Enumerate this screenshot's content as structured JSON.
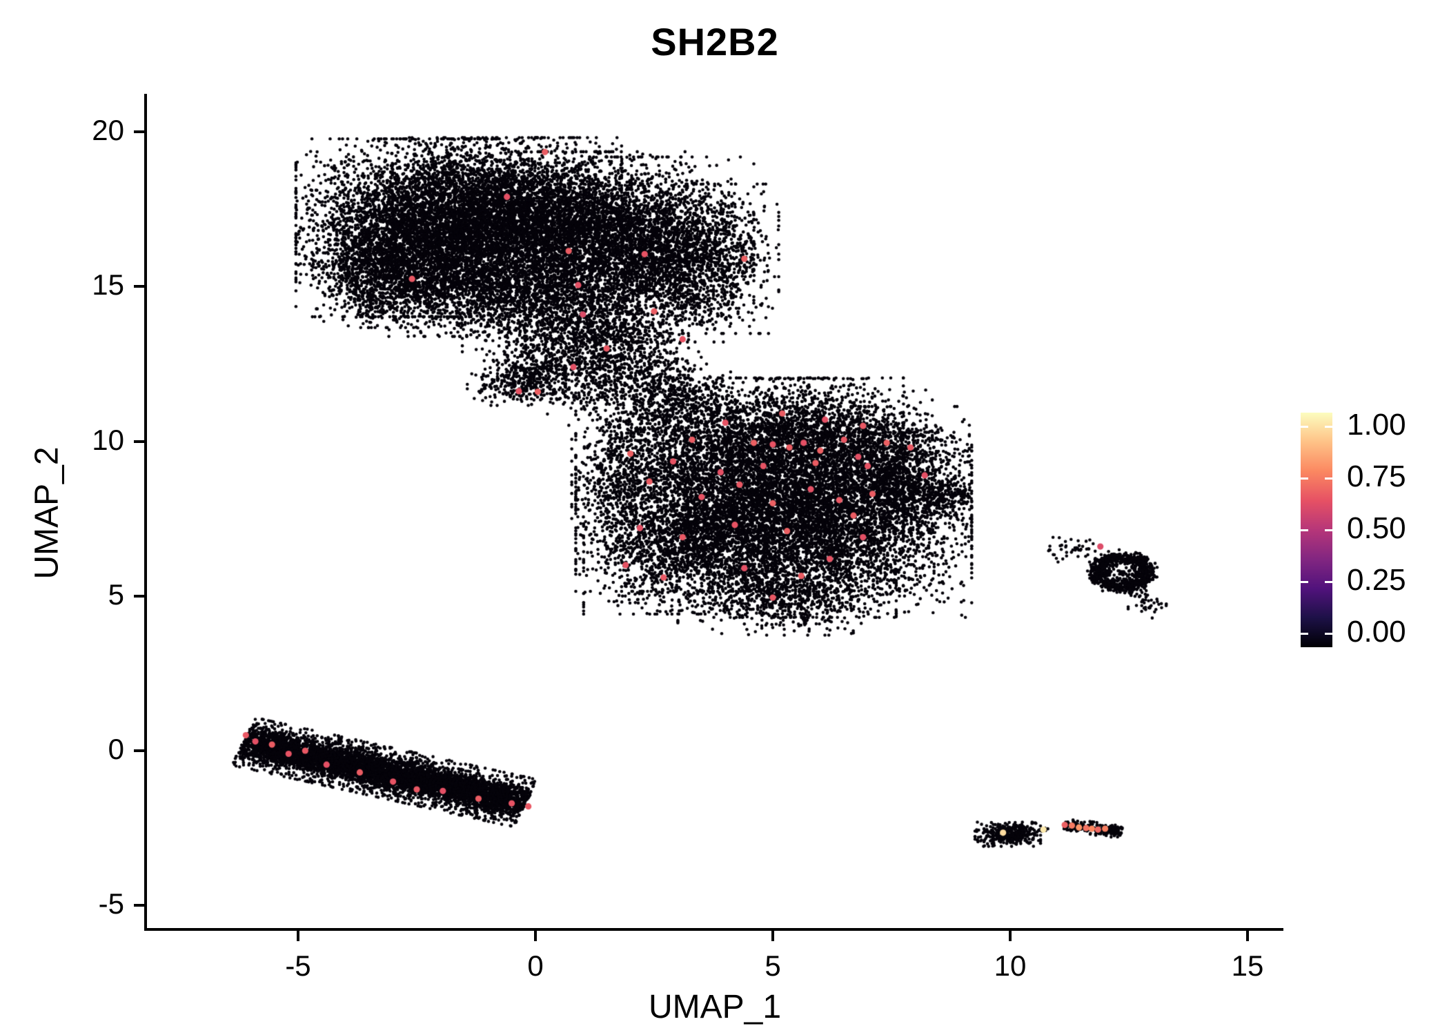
{
  "title": "SH2B2",
  "axes": {
    "x": {
      "label": "UMAP_1",
      "tick_labels": [
        "-5",
        "0",
        "5",
        "10",
        "15"
      ],
      "tick_values": [
        -5,
        0,
        5,
        10,
        15
      ]
    },
    "y": {
      "label": "UMAP_2",
      "tick_labels": [
        "20",
        "15",
        "10",
        "5",
        "0",
        "-5"
      ],
      "tick_values": [
        20,
        15,
        10,
        5,
        0,
        -5
      ]
    }
  },
  "legend": {
    "tick_labels": [
      "1.00",
      "0.75",
      "0.50",
      "0.25",
      "0.00"
    ],
    "tick_values": [
      1.0,
      0.75,
      0.5,
      0.25,
      0.0
    ]
  },
  "colors": {
    "background": "#ffffff",
    "axis": "#000000",
    "base_point": "#05030a",
    "magma_stops": [
      "#000004",
      "#1D1147",
      "#51127C",
      "#822681",
      "#B63679",
      "#E65164",
      "#FB8861",
      "#FEC287",
      "#FCFDBF"
    ]
  },
  "chart_data": {
    "type": "scatter",
    "title": "SH2B2",
    "xlabel": "UMAP_1",
    "ylabel": "UMAP_2",
    "xlim": [
      -8.2,
      16.0
    ],
    "ylim": [
      -5.7,
      21.3
    ],
    "grid": false,
    "legend_position": "right",
    "color_scale": {
      "name": "magma",
      "domain": [
        0,
        1
      ]
    },
    "style": {
      "point_radius_px": 2.3,
      "highlight_radius_px": 4.6
    },
    "clusters": {
      "blobs": [
        [
          -2.4,
          16.9,
          1.15,
          1.25,
          4500
        ],
        [
          -0.6,
          17.4,
          1.05,
          1.05,
          3200
        ],
        [
          0.9,
          16.6,
          1.0,
          1.2,
          2600
        ],
        [
          2.3,
          16.2,
          1.0,
          1.3,
          2200
        ],
        [
          3.4,
          15.9,
          0.75,
          1.05,
          1200
        ],
        [
          -3.3,
          15.4,
          0.6,
          0.75,
          900
        ],
        [
          -1.4,
          15.0,
          0.9,
          0.7,
          1200
        ],
        [
          0.3,
          14.2,
          0.8,
          0.8,
          900
        ],
        [
          1.5,
          13.1,
          0.75,
          0.75,
          700
        ],
        [
          0.3,
          12.4,
          0.6,
          0.5,
          350
        ],
        [
          -0.4,
          11.85,
          0.45,
          0.3,
          250
        ],
        [
          2.3,
          12.1,
          0.6,
          0.6,
          280
        ],
        [
          2.9,
          11.2,
          0.5,
          0.5,
          120
        ],
        [
          1.2,
          11.5,
          0.5,
          0.5,
          90
        ],
        [
          4.3,
          8.6,
          1.5,
          1.5,
          5200
        ],
        [
          6.2,
          7.3,
          1.3,
          1.3,
          3600
        ],
        [
          3.2,
          6.6,
          0.95,
          0.95,
          1500
        ],
        [
          5.6,
          10.3,
          1.2,
          0.75,
          1400
        ],
        [
          7.3,
          9.4,
          0.8,
          0.75,
          900
        ],
        [
          5.3,
          5.0,
          1.0,
          0.55,
          700
        ],
        [
          7.8,
          8.3,
          0.6,
          0.6,
          500
        ],
        [
          8.6,
          8.2,
          0.3,
          0.25,
          130
        ],
        [
          2.2,
          10.3,
          0.5,
          0.6,
          220
        ],
        [
          3.3,
          11.3,
          0.6,
          0.45,
          180
        ],
        [
          1.8,
          8.6,
          0.45,
          0.8,
          300
        ],
        [
          9.95,
          -2.7,
          0.3,
          0.17,
          380
        ],
        [
          10.7,
          -2.55,
          0.06,
          0.05,
          12
        ],
        [
          11.35,
          6.5,
          0.3,
          0.18,
          45
        ],
        [
          12.9,
          4.75,
          0.18,
          0.2,
          40
        ],
        [
          6.7,
          3.8,
          0.05,
          0.05,
          3
        ],
        [
          9.0,
          8.35,
          0.05,
          0.05,
          4
        ]
      ],
      "segments": [
        [
          -6.15,
          0.3,
          -0.2,
          -1.7,
          0.7,
          4200
        ],
        [
          -5.9,
          0.2,
          -0.55,
          -1.6,
          0.36,
          2600
        ],
        [
          11.15,
          -2.4,
          12.35,
          -2.62,
          0.18,
          270
        ]
      ],
      "rings": [
        [
          12.35,
          5.78,
          0.52,
          0.42,
          900
        ]
      ]
    },
    "highlight_points": [
      [
        0.2,
        19.35,
        0.65
      ],
      [
        -0.6,
        17.9,
        0.62
      ],
      [
        0.7,
        16.15,
        0.65
      ],
      [
        2.3,
        16.05,
        0.63
      ],
      [
        4.4,
        15.9,
        0.66
      ],
      [
        -2.6,
        15.25,
        0.64
      ],
      [
        0.9,
        15.05,
        0.62
      ],
      [
        2.5,
        14.2,
        0.65
      ],
      [
        3.1,
        13.3,
        0.63
      ],
      [
        1.5,
        13.0,
        0.64
      ],
      [
        0.8,
        12.4,
        0.62
      ],
      [
        0.05,
        11.6,
        0.66
      ],
      [
        -0.35,
        11.62,
        0.63
      ],
      [
        1.0,
        14.1,
        0.6
      ],
      [
        2.0,
        9.6,
        0.66
      ],
      [
        2.9,
        9.35,
        0.63
      ],
      [
        3.3,
        10.05,
        0.65
      ],
      [
        3.9,
        9.0,
        0.62
      ],
      [
        4.3,
        8.6,
        0.64
      ],
      [
        4.6,
        9.95,
        0.66
      ],
      [
        5.0,
        9.9,
        0.63
      ],
      [
        5.35,
        9.8,
        0.65
      ],
      [
        5.65,
        9.95,
        0.62
      ],
      [
        6.0,
        9.7,
        0.66
      ],
      [
        6.5,
        10.05,
        0.64
      ],
      [
        4.8,
        9.2,
        0.63
      ],
      [
        5.9,
        9.3,
        0.65
      ],
      [
        6.8,
        9.5,
        0.62
      ],
      [
        7.4,
        9.95,
        0.66
      ],
      [
        7.0,
        9.2,
        0.63
      ],
      [
        7.9,
        9.8,
        0.64
      ],
      [
        8.2,
        8.9,
        0.62
      ],
      [
        2.4,
        8.7,
        0.65
      ],
      [
        3.5,
        8.2,
        0.63
      ],
      [
        5.0,
        8.0,
        0.66
      ],
      [
        5.8,
        8.45,
        0.62
      ],
      [
        6.4,
        8.1,
        0.64
      ],
      [
        7.1,
        8.3,
        0.65
      ],
      [
        2.2,
        7.2,
        0.62
      ],
      [
        3.1,
        6.9,
        0.64
      ],
      [
        4.2,
        7.3,
        0.63
      ],
      [
        5.3,
        7.1,
        0.66
      ],
      [
        6.9,
        6.9,
        0.62
      ],
      [
        6.7,
        7.6,
        0.65
      ],
      [
        1.9,
        6.0,
        0.63
      ],
      [
        2.7,
        5.6,
        0.64
      ],
      [
        4.4,
        5.9,
        0.62
      ],
      [
        5.6,
        5.65,
        0.65
      ],
      [
        6.2,
        6.2,
        0.63
      ],
      [
        5.0,
        4.95,
        0.64
      ],
      [
        6.1,
        10.7,
        0.62
      ],
      [
        5.2,
        10.9,
        0.65
      ],
      [
        4.0,
        10.6,
        0.63
      ],
      [
        6.9,
        10.5,
        0.64
      ],
      [
        -6.1,
        0.5,
        0.64
      ],
      [
        -5.9,
        0.3,
        0.62
      ],
      [
        -5.55,
        0.2,
        0.65
      ],
      [
        -5.2,
        -0.1,
        0.63
      ],
      [
        -4.85,
        0.0,
        0.64
      ],
      [
        -4.4,
        -0.45,
        0.62
      ],
      [
        -3.7,
        -0.7,
        0.65
      ],
      [
        -3.0,
        -1.0,
        0.63
      ],
      [
        -2.5,
        -1.25,
        0.64
      ],
      [
        -1.95,
        -1.3,
        0.62
      ],
      [
        -1.2,
        -1.55,
        0.65
      ],
      [
        -0.5,
        -1.7,
        0.63
      ],
      [
        -0.15,
        -1.8,
        0.64
      ],
      [
        9.85,
        -2.65,
        0.93
      ],
      [
        10.7,
        -2.55,
        0.96
      ],
      [
        11.3,
        -2.42,
        0.72
      ],
      [
        11.45,
        -2.48,
        0.78
      ],
      [
        11.6,
        -2.5,
        0.7
      ],
      [
        11.72,
        -2.52,
        0.75
      ],
      [
        11.85,
        -2.55,
        0.68
      ],
      [
        12.0,
        -2.52,
        0.73
      ],
      [
        11.15,
        -2.4,
        0.66
      ],
      [
        11.9,
        6.6,
        0.6
      ]
    ]
  }
}
